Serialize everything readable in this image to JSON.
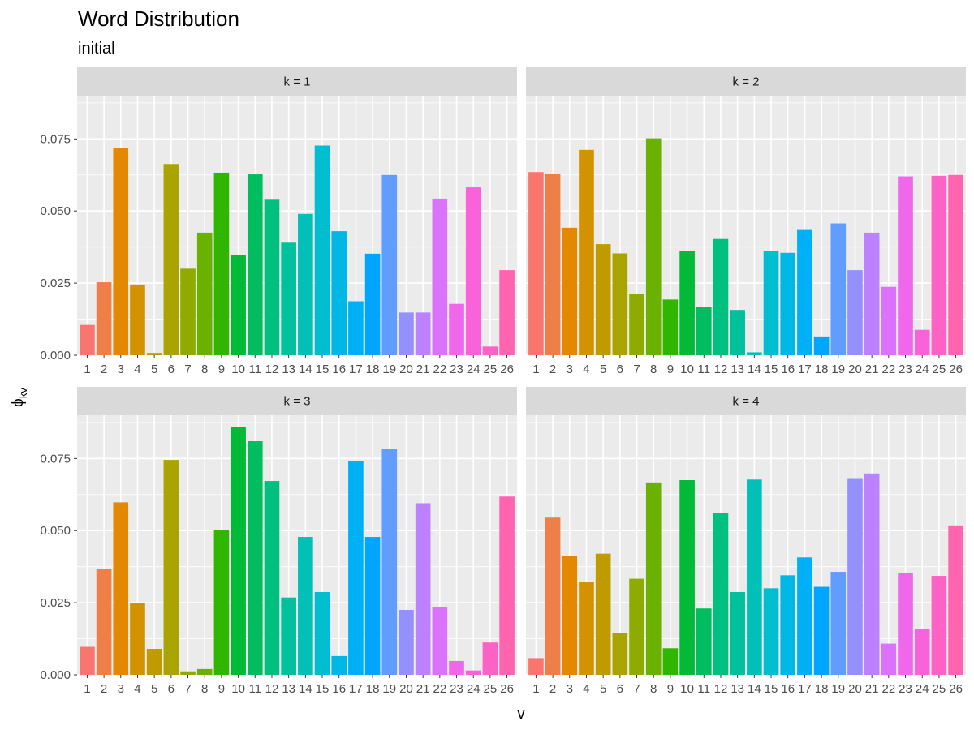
{
  "chart_data": {
    "type": "bar",
    "title": "Word Distribution",
    "subtitle": "initial",
    "xlabel": "v",
    "ylabel": "ϕ",
    "ylabel_subscript": "kv",
    "ylim": [
      0,
      0.09
    ],
    "yticks": [
      "0.000",
      "0.025",
      "0.050",
      "0.075"
    ],
    "ytick_values": [
      0,
      0.025,
      0.05,
      0.075
    ],
    "categories": [
      "1",
      "2",
      "3",
      "4",
      "5",
      "6",
      "7",
      "8",
      "9",
      "10",
      "11",
      "12",
      "13",
      "14",
      "15",
      "16",
      "17",
      "18",
      "19",
      "20",
      "21",
      "22",
      "23",
      "24",
      "25",
      "26"
    ],
    "grid": true,
    "panel_background": "#ebebeb",
    "strip_background": "#d9d9d9",
    "palette": [
      "#F8766D",
      "#EF7F49",
      "#E38900",
      "#D39200",
      "#C09B00",
      "#A9A400",
      "#8EAB00",
      "#6BB100",
      "#31B600",
      "#00BA38",
      "#00BD5F",
      "#00C07F",
      "#00C19C",
      "#00C0B8",
      "#00BDD0",
      "#00B8E5",
      "#00B0F6",
      "#00A5FF",
      "#619CFF",
      "#9590FF",
      "#BC81FF",
      "#DB72FB",
      "#EF67EB",
      "#FA62DB",
      "#FF62C5",
      "#FF65AE"
    ],
    "panels": [
      {
        "strip": "k = 1",
        "values": [
          0.0105,
          0.0253,
          0.072,
          0.0245,
          0.0008,
          0.0663,
          0.03,
          0.0425,
          0.0633,
          0.0348,
          0.0627,
          0.0542,
          0.0393,
          0.049,
          0.0727,
          0.043,
          0.0187,
          0.0352,
          0.0625,
          0.0148,
          0.0148,
          0.0543,
          0.0178,
          0.0582,
          0.003,
          0.0295
        ]
      },
      {
        "strip": "k = 2",
        "values": [
          0.0635,
          0.063,
          0.0442,
          0.0712,
          0.0385,
          0.0353,
          0.0212,
          0.0752,
          0.0193,
          0.0362,
          0.0167,
          0.0403,
          0.0157,
          0.001,
          0.0362,
          0.0355,
          0.0437,
          0.0065,
          0.0457,
          0.0295,
          0.0425,
          0.0237,
          0.062,
          0.0088,
          0.0622,
          0.0625
        ]
      },
      {
        "strip": "k = 3",
        "values": [
          0.0097,
          0.0368,
          0.0598,
          0.0248,
          0.009,
          0.0745,
          0.0012,
          0.002,
          0.0503,
          0.0858,
          0.081,
          0.0672,
          0.0268,
          0.0478,
          0.0287,
          0.0065,
          0.0742,
          0.0478,
          0.0782,
          0.0225,
          0.0595,
          0.0235,
          0.0048,
          0.0015,
          0.0112,
          0.0618
        ]
      },
      {
        "strip": "k = 4",
        "values": [
          0.0058,
          0.0545,
          0.0412,
          0.0322,
          0.042,
          0.0145,
          0.0333,
          0.0667,
          0.0092,
          0.0675,
          0.023,
          0.0562,
          0.0287,
          0.0677,
          0.03,
          0.0345,
          0.0407,
          0.0305,
          0.0357,
          0.0682,
          0.0698,
          0.0108,
          0.0352,
          0.0158,
          0.0343,
          0.0518
        ]
      }
    ]
  }
}
